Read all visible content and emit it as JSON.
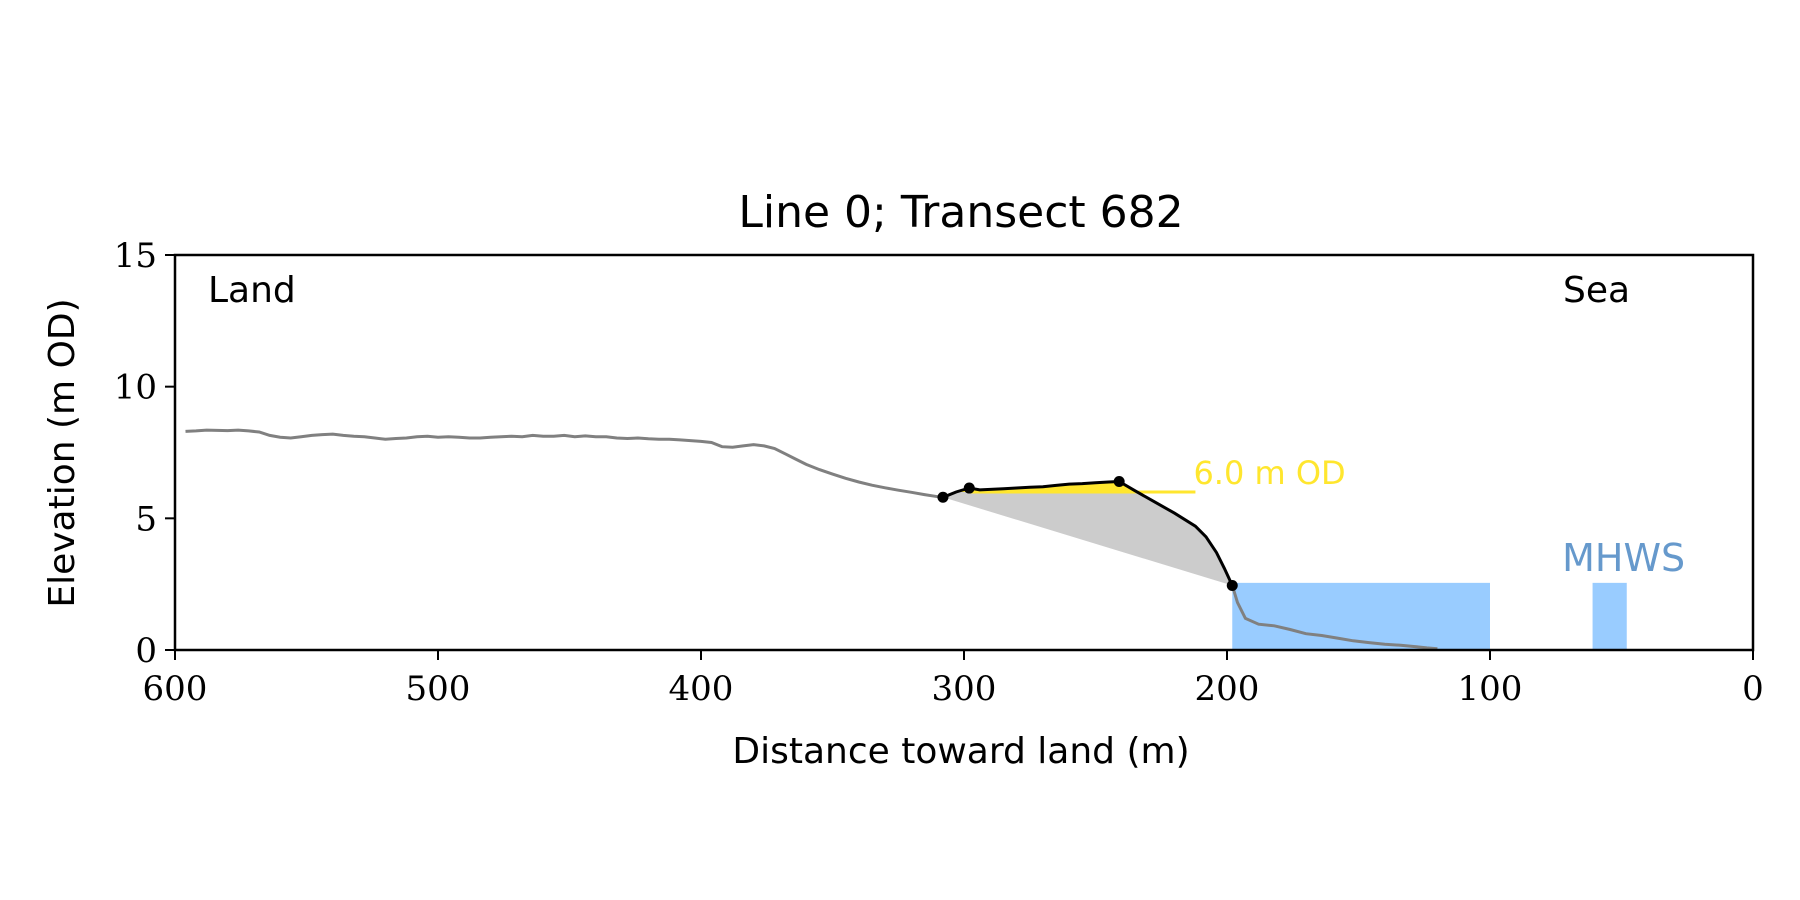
{
  "chart_data": {
    "type": "line",
    "title": "Line 0; Transect 682",
    "xlabel": "Distance toward land (m)",
    "ylabel": "Elevation (m OD)",
    "xlim": [
      600,
      0
    ],
    "ylim": [
      0,
      15
    ],
    "x_ticks": [
      600,
      500,
      400,
      300,
      200,
      100,
      0
    ],
    "y_ticks": [
      0,
      5,
      10,
      15
    ],
    "grid": false,
    "corner_labels": {
      "land": "Land",
      "sea": "Sea"
    },
    "colors": {
      "profile": "#808080",
      "cliff": "#000000",
      "fill_gray": "#cccccc",
      "fill_yellow": "#ffe62e",
      "threshold": "#ffe62e",
      "water": "#99ccff",
      "mhws_label": "#6699cc"
    },
    "profile": {
      "x": [
        596,
        592,
        588,
        584,
        580,
        576,
        572,
        568,
        564,
        560,
        556,
        552,
        548,
        544,
        540,
        536,
        532,
        528,
        524,
        520,
        516,
        512,
        508,
        504,
        500,
        496,
        492,
        488,
        484,
        480,
        476,
        472,
        468,
        464,
        460,
        456,
        452,
        448,
        444,
        440,
        436,
        432,
        428,
        424,
        420,
        416,
        412,
        408,
        404,
        400,
        396,
        392,
        388,
        384,
        380,
        376,
        372,
        368,
        364,
        360,
        355,
        350,
        345,
        340,
        335,
        330,
        325,
        320,
        315,
        310,
        308
      ],
      "y": [
        8.3,
        8.32,
        8.35,
        8.34,
        8.33,
        8.35,
        8.32,
        8.28,
        8.15,
        8.08,
        8.05,
        8.1,
        8.15,
        8.18,
        8.2,
        8.15,
        8.12,
        8.1,
        8.05,
        8.0,
        8.03,
        8.05,
        8.1,
        8.12,
        8.08,
        8.1,
        8.08,
        8.05,
        8.05,
        8.08,
        8.1,
        8.12,
        8.1,
        8.15,
        8.12,
        8.12,
        8.15,
        8.1,
        8.13,
        8.1,
        8.1,
        8.05,
        8.03,
        8.05,
        8.02,
        8.0,
        8.0,
        7.98,
        7.95,
        7.92,
        7.88,
        7.72,
        7.7,
        7.75,
        7.8,
        7.75,
        7.65,
        7.45,
        7.25,
        7.05,
        6.85,
        6.68,
        6.52,
        6.38,
        6.26,
        6.16,
        6.07,
        5.99,
        5.9,
        5.82,
        5.8
      ]
    },
    "cliff": {
      "x": [
        308,
        303,
        298,
        294,
        290,
        285,
        280,
        275,
        270,
        265,
        260,
        255,
        250,
        245,
        241,
        235,
        228,
        220,
        212,
        208,
        204,
        201,
        198
      ],
      "y": [
        5.8,
        6.0,
        6.15,
        6.08,
        6.1,
        6.12,
        6.15,
        6.18,
        6.2,
        6.25,
        6.3,
        6.32,
        6.35,
        6.38,
        6.4,
        6.05,
        5.65,
        5.2,
        4.7,
        4.3,
        3.7,
        3.1,
        2.45
      ]
    },
    "cliff_points": {
      "x": [
        308,
        298,
        241,
        198
      ],
      "y": [
        5.8,
        6.15,
        6.4,
        2.45
      ]
    },
    "foreshore": {
      "x": [
        198,
        196,
        193,
        188,
        182,
        176,
        170,
        164,
        158,
        152,
        146,
        140,
        134,
        128,
        124,
        120
      ],
      "y": [
        2.45,
        1.8,
        1.2,
        0.98,
        0.92,
        0.78,
        0.62,
        0.55,
        0.45,
        0.35,
        0.28,
        0.22,
        0.18,
        0.12,
        0.08,
        0.05
      ]
    },
    "threshold": {
      "value": 6.0,
      "x_range": [
        298,
        212
      ],
      "label": "6.0 m OD"
    },
    "mhws": {
      "level": 2.55,
      "label": "MHWS",
      "rects": [
        {
          "x_start": 198,
          "x_end": 100
        },
        {
          "x_start": 61,
          "x_end": 48
        }
      ]
    }
  }
}
